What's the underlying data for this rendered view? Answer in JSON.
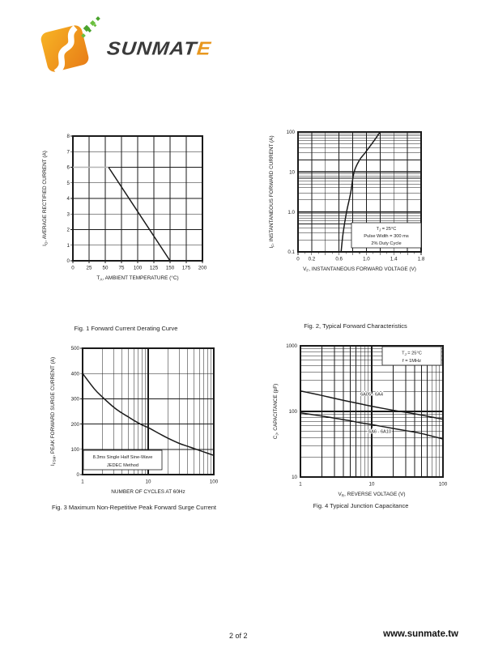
{
  "logo": {
    "wordmark_main": "SUNMAT",
    "wordmark_accent": "E"
  },
  "footer": {
    "page_indicator": "2 of 2",
    "website": "www.sunmate.tw"
  },
  "colors": {
    "curve": "#1a1a1a",
    "grid": "#1a1a1a",
    "flat_segment": "#b5b5b5",
    "logo_orange": "#ef9018",
    "logo_orange_light": "#f7b324",
    "logo_green": "#4aa32d",
    "accent_text": "#e8971e"
  },
  "chart_data": [
    {
      "id": "fig1",
      "type": "line",
      "title": "Fig. 1  Forward Current Derating Curve",
      "xlabel": "T_{A}, AMBIENT TEMPERATURE (°C)",
      "ylabel": "I_{O}, AVERAGE RECTIFIED CURRENT (A)",
      "xscale": "linear",
      "yscale": "linear",
      "xlim": [
        0,
        200
      ],
      "ylim": [
        0,
        8
      ],
      "xticks": [
        0,
        25,
        50,
        75,
        100,
        125,
        150,
        175,
        200
      ],
      "yticks": [
        0,
        1,
        2,
        3,
        4,
        5,
        6,
        7,
        8
      ],
      "grid": true,
      "series": [
        {
          "name": "flat-region",
          "color": "#b5b5b5",
          "points": [
            [
              0,
              6
            ],
            [
              55,
              6
            ]
          ]
        },
        {
          "name": "derating-line",
          "color": "#1a1a1a",
          "points": [
            [
              55,
              6
            ],
            [
              150,
              0
            ]
          ]
        }
      ]
    },
    {
      "id": "fig2",
      "type": "line",
      "title": "Fig. 2, Typical Forward Characteristics",
      "xlabel": "V_{F}, INSTANTANEOUS FORWARD VOLTAGE (V)",
      "ylabel": "I_{F}, INSTANTANEOUS FORWARD CURRENT (A)",
      "xscale": "linear",
      "yscale": "log",
      "xlim": [
        0,
        1.8
      ],
      "ylim": [
        0.1,
        100
      ],
      "xgrid_step": 0.2,
      "x_minor_tick": 0.1,
      "xticks": [
        0,
        0.2,
        0.6,
        1.0,
        1.4,
        1.8
      ],
      "xtick_labels": [
        "0",
        "0.2",
        "0.6",
        "1.0",
        "1.4",
        "1.8"
      ],
      "yticks": [
        0.1,
        1.0,
        10,
        100
      ],
      "ytick_labels": [
        "0.1",
        "1.0",
        "10",
        "100"
      ],
      "grid": true,
      "series": [
        {
          "name": "forward-characteristic-curve",
          "color": "#1a1a1a",
          "points": [
            [
              0.63,
              0.1
            ],
            [
              0.66,
              0.3
            ],
            [
              0.71,
              1
            ],
            [
              0.77,
              3
            ],
            [
              0.82,
              10
            ],
            [
              0.9,
              20
            ],
            [
              0.98,
              30
            ],
            [
              1.11,
              60
            ],
            [
              1.2,
              100
            ]
          ]
        }
      ],
      "annotation": {
        "lines": [
          "T_{J} = 25°C",
          "Pulse Width = 300 ms",
          "2% Duty Cycle"
        ],
        "position": "bottom-right"
      }
    },
    {
      "id": "fig3",
      "type": "line",
      "title": "Fig. 3  Maximum Non-Repetitive Peak Forward Surge Current",
      "xlabel": "NUMBER OF CYCLES AT 60Hz",
      "ylabel": "I_{FSM}, PEAK FORWARD SURGE CURRENT (A)",
      "xscale": "log",
      "yscale": "linear",
      "xlim": [
        1,
        100
      ],
      "ylim": [
        0,
        500
      ],
      "xticks": [
        1,
        10,
        100
      ],
      "xtick_labels": [
        "1",
        "10",
        "100"
      ],
      "yticks": [
        0,
        100,
        200,
        300,
        400,
        500
      ],
      "grid": true,
      "series": [
        {
          "name": "surge-current-curve",
          "color": "#1a1a1a",
          "points": [
            [
              1,
              400
            ],
            [
              1.5,
              340
            ],
            [
              2,
              307
            ],
            [
              3,
              266
            ],
            [
              4,
              243
            ],
            [
              5,
              228
            ],
            [
              6,
              215
            ],
            [
              8,
              197
            ],
            [
              10,
              186
            ],
            [
              15,
              161
            ],
            [
              20,
              144
            ],
            [
              30,
              123
            ],
            [
              40,
              112
            ],
            [
              50,
              103
            ],
            [
              70,
              90
            ],
            [
              100,
              76
            ]
          ]
        }
      ],
      "annotation": {
        "lines": [
          "8.3ms Single Half Sine-Wave",
          "JEDEC Method"
        ],
        "position": "bottom-left"
      }
    },
    {
      "id": "fig4",
      "type": "line",
      "title": "Fig. 4  Typical Junction Capacitance",
      "xlabel": "V_{R}, REVERSE VOLTAGE (V)",
      "ylabel": "C_{J}, CAPACITANCE (pF)",
      "xscale": "log",
      "yscale": "log",
      "xlim": [
        1,
        100
      ],
      "ylim": [
        10,
        1000
      ],
      "xticks": [
        1,
        10,
        100
      ],
      "xtick_labels": [
        "1",
        "10",
        "100"
      ],
      "yticks": [
        10,
        100,
        1000
      ],
      "ytick_labels": [
        "10",
        "100",
        "1000"
      ],
      "grid": true,
      "series": [
        {
          "name": "6A05-6A4",
          "label": "6A05 - 6A4",
          "color": "#1a1a1a",
          "label_pos": [
            10,
            175
          ],
          "points": [
            [
              1,
              205
            ],
            [
              2,
              175
            ],
            [
              3,
              158
            ],
            [
              5,
              140
            ],
            [
              7,
              130
            ],
            [
              10,
              120
            ],
            [
              20,
              104
            ],
            [
              30,
              97
            ],
            [
              50,
              88
            ],
            [
              100,
              76
            ]
          ]
        },
        {
          "name": "6A6-6A10",
          "label": "6A6 - 6A10",
          "color": "#1a1a1a",
          "label_pos": [
            13,
            47
          ],
          "points": [
            [
              1,
              95
            ],
            [
              2,
              85
            ],
            [
              3,
              79
            ],
            [
              5,
              72
            ],
            [
              7,
              67
            ],
            [
              10,
              63
            ],
            [
              20,
              55
            ],
            [
              30,
              51
            ],
            [
              50,
              46
            ],
            [
              100,
              38
            ]
          ]
        }
      ],
      "annotation": {
        "lines": [
          "T_{J} = 25°C",
          "f = 1MHz"
        ],
        "position": "top-right"
      }
    }
  ]
}
